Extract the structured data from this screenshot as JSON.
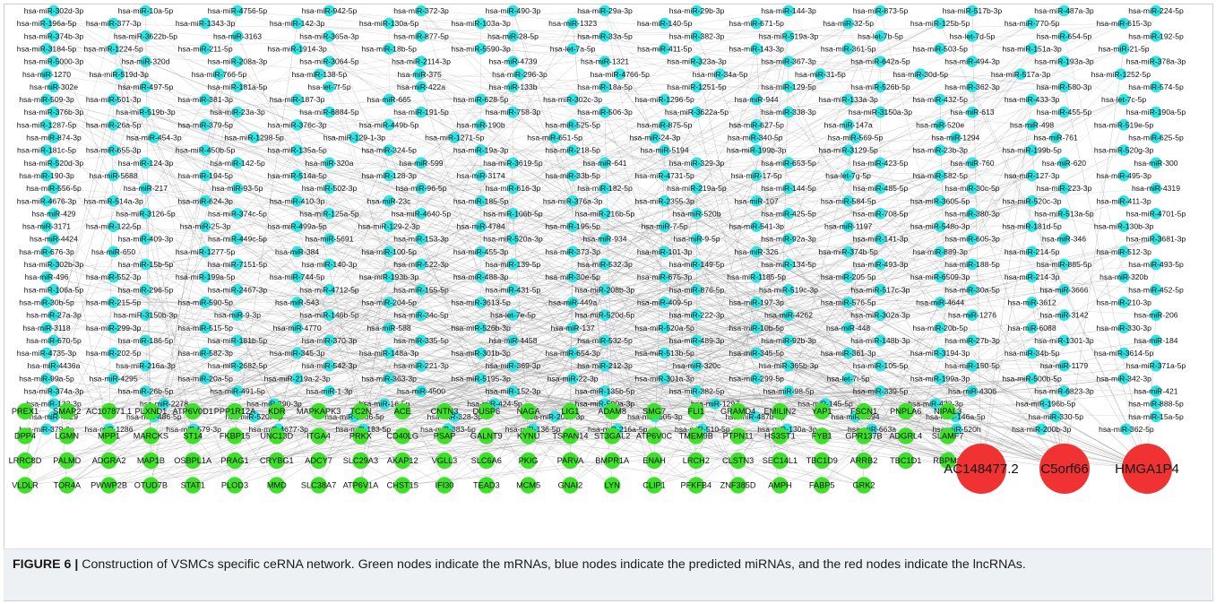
{
  "figure": {
    "label": "FIGURE 6 |",
    "caption": " Construction of VSMCs specific ceRNA network. Green nodes indicate the mRNAs, blue nodes indicate the predicted miRNAs, and the red nodes indicate the lncRNAs."
  },
  "colors": {
    "mirna_node": "#2fe3e3",
    "mrna_node": "#3ee02a",
    "lncrna_node": "#f03232",
    "edge": "#8c8c8c",
    "caption_bg": "#eef1f4"
  },
  "mirna_rows": [
    [
      "hsa-miR-302d-3p",
      "hsa-miR-10a-5p",
      "hsa-miR-4756-5p",
      "hsa-miR-942-5p",
      "hsa-miR-372-3p",
      "hsa-miR-490-3p",
      "hsa-miR-29a-3p",
      "hsa-miR-29b-3p",
      "hsa-miR-144-3p",
      "hsa-miR-873-5p",
      "hsa-miR-517b-3p",
      "hsa-miR-487a-3p",
      "hsa-miR-224-5p"
    ],
    [
      "hsa-miR-196a-5p",
      "hsa-miR-377-3p",
      "hsa-miR-1343-3p",
      "hsa-miR-142-3p",
      "hsa-miR-130a-5p",
      "hsa-miR-103a-3p",
      "hsa-miR-1323",
      "hsa-miR-140-5p",
      "hsa-miR-671-5p",
      "hsa-miR-32-5p",
      "hsa-miR-125b-5p",
      "hsa-miR-770-5p",
      "hsa-miR-615-3p"
    ],
    [
      "hsa-miR-374b-3p",
      "hsa-miR-3622b-5p",
      "hsa-miR-3163",
      "hsa-miR-365a-3p",
      "hsa-miR-877-5p",
      "hsa-miR-28-5p",
      "hsa-miR-33a-5p",
      "hsa-miR-382-3p",
      "hsa-miR-519a-3p",
      "hsa-let-7b-5p",
      "hsa-let-7d-5p",
      "hsa-miR-654-5p",
      "hsa-miR-192-5p"
    ],
    [
      "hsa-miR-3184-5p",
      "hsa-miR-1224-5p",
      "hsa-miR-211-5p",
      "hsa-miR-1914-3p",
      "hsa-miR-18b-5p",
      "hsa-miR-5590-3p",
      "hsa-let-7a-5p",
      "hsa-miR-411-5p",
      "hsa-miR-143-3p",
      "hsa-miR-361-5p",
      "hsa-miR-503-5p",
      "hsa-miR-151a-3p",
      "hsa-miR-21-5p"
    ],
    [
      "hsa-miR-5000-3p",
      "hsa-miR-320d",
      "hsa-miR-208a-3p",
      "hsa-miR-3064-5p",
      "hsa-miR-2114-3p",
      "hsa-miR-4739",
      "hsa-miR-1321",
      "hsa-miR-323a-3p",
      "hsa-miR-367-3p",
      "hsa-miR-642a-5p",
      "hsa-miR-494-3p",
      "hsa-miR-193a-3p",
      "hsa-miR-378a-3p"
    ],
    [
      "hsa-miR-1270",
      "hsa-miR-519d-3p",
      "hsa-miR-766-5p",
      "hsa-miR-138-5p",
      "hsa-miR-375",
      "hsa-miR-296-3p",
      "hsa-miR-4766-5p",
      "hsa-miR-34a-5p",
      "hsa-miR-31-5p",
      "hsa-miR-30d-5p",
      "hsa-miR-517a-3p",
      "hsa-miR-1252-5p"
    ],
    [
      "hsa-miR-302e",
      "hsa-miR-497-5p",
      "hsa-miR-181a-5p",
      "hsa-let-7f-5p",
      "hsa-miR-422a",
      "hsa-miR-133b",
      "hsa-miR-18a-5p",
      "hsa-miR-1251-5p",
      "hsa-miR-129-5p",
      "hsa-miR-526b-5p",
      "hsa-miR-362-3p",
      "hsa-miR-580-3p",
      "hsa-miR-574-5p"
    ],
    [
      "hsa-miR-509-3p",
      "hsa-miR-501-3p",
      "hsa-miR-381-3p",
      "hsa-miR-187-3p",
      "hsa-miR-665",
      "hsa-miR-628-5p",
      "hsa-miR-302c-3p",
      "hsa-miR-1296-5p",
      "hsa-miR-944",
      "hsa-miR-133a-3p",
      "hsa-miR-432-5p",
      "hsa-miR-433-3p",
      "hsa-let-7c-5p"
    ],
    [
      "hsa-miR-376b-3p",
      "hsa-miR-519b-3p",
      "hsa-miR-23a-3p",
      "hsa-miR-6884-5p",
      "hsa-miR-191-5p",
      "hsa-miR-758-3p",
      "hsa-miR-506-3p",
      "hsa-miR-3622a-5p",
      "hsa-miR-338-3p",
      "hsa-miR-3150a-3p",
      "hsa-miR-613",
      "hsa-miR-455-5p",
      "hsa-miR-190a-5p"
    ],
    [
      "hsa-miR-1287-5p",
      "hsa-miR-26a-5p",
      "hsa-miR-379-5p",
      "hsa-miR-376c-3p",
      "hsa-miR-449b-5p",
      "hsa-miR-190b",
      "hsa-miR-525-5p",
      "hsa-miR-875-5p",
      "hsa-miR-627-5p",
      "hsa-miR-147a",
      "hsa-miR-520e",
      "hsa-miR-498",
      "hsa-miR-519e-5p"
    ],
    [
      "hsa-miR-874-3p",
      "hsa-miR-454-3p",
      "hsa-miR-1298-5p",
      "hsa-miR-129-1-3p",
      "hsa-miR-1271-5p",
      "hsa-miR-651-5p",
      "hsa-miR-24-3p",
      "hsa-miR-340-5p",
      "hsa-miR-569-5p",
      "hsa-miR-1294",
      "hsa-miR-761",
      "hsa-miR-625-5p"
    ],
    [
      "hsa-miR-181c-5p",
      "hsa-miR-655-3p",
      "hsa-miR-450b-5p",
      "hsa-miR-135a-5p",
      "hsa-miR-324-5p",
      "hsa-miR-19a-3p",
      "hsa-miR-218-5p",
      "hsa-miR-5194",
      "hsa-miR-199b-3p",
      "hsa-miR-3129-5p",
      "hsa-miR-23b-3p",
      "hsa-miR-199b-5p",
      "hsa-miR-520g-3p"
    ],
    [
      "hsa-miR-520d-3p",
      "hsa-miR-124-3p",
      "hsa-miR-142-5p",
      "hsa-miR-320a",
      "hsa-miR-599",
      "hsa-miR-3619-5p",
      "hsa-miR-641",
      "hsa-miR-329-3p",
      "hsa-miR-653-5p",
      "hsa-miR-423-5p",
      "hsa-miR-760",
      "hsa-miR-620",
      "hsa-miR-300"
    ],
    [
      "hsa-miR-190-3p",
      "hsa-miR-5688",
      "hsa-miR-194-5p",
      "hsa-miR-514a-5p",
      "hsa-miR-128-3p",
      "hsa-miR-3174",
      "hsa-miR-33b-5p",
      "hsa-miR-4731-5p",
      "hsa-miR-17-5p",
      "hsa-let-7g-5p",
      "hsa-miR-582-5p",
      "hsa-miR-127-3p",
      "hsa-miR-495-3p"
    ],
    [
      "hsa-miR-556-5p",
      "hsa-miR-217",
      "hsa-miR-93-5p",
      "hsa-miR-502-3p",
      "hsa-miR-96-5p",
      "hsa-miR-616-3p",
      "hsa-miR-182-5p",
      "hsa-miR-219a-5p",
      "hsa-miR-144-5p",
      "hsa-miR-485-5p",
      "hsa-miR-30c-5p",
      "hsa-miR-223-3p",
      "hsa-miR-4319"
    ],
    [
      "hsa-miR-4676-3p",
      "hsa-miR-514a-3p",
      "hsa-miR-624-3p",
      "hsa-miR-410-3p",
      "hsa-miR-23c",
      "hsa-miR-185-5p",
      "hsa-miR-376a-3p",
      "hsa-miR-2355-3p",
      "hsa-miR-107",
      "hsa-miR-584-5p",
      "hsa-miR-3605-5p",
      "hsa-miR-520c-3p",
      "hsa-miR-411-3p"
    ],
    [
      "hsa-miR-429",
      "hsa-miR-3126-5p",
      "hsa-miR-374c-5p",
      "hsa-miR-125a-5p",
      "hsa-miR-4640-5p",
      "hsa-miR-106b-5p",
      "hsa-miR-216b-5p",
      "hsa-miR-520b",
      "hsa-miR-425-5p",
      "hsa-miR-708-5p",
      "hsa-miR-380-3p",
      "hsa-miR-513a-5p",
      "hsa-miR-4701-5p"
    ],
    [
      "hsa-miR-3171",
      "hsa-miR-122-5p",
      "hsa-miR-25-3p",
      "hsa-miR-499a-5p",
      "hsa-miR-129-2-3p",
      "hsa-miR-4784",
      "hsa-miR-195-5p",
      "hsa-miR-7-5p",
      "hsa-miR-541-3p",
      "hsa-miR-1197",
      "hsa-miR-548o-3p",
      "hsa-miR-181d-5p",
      "hsa-miR-130b-3p"
    ],
    [
      "hsa-miR-4424",
      "hsa-miR-409-3p",
      "hsa-miR-449c-5p",
      "hsa-miR-5691",
      "hsa-miR-153-3p",
      "hsa-miR-520a-3p",
      "hsa-miR-934",
      "hsa-miR-9-5p",
      "hsa-miR-92a-3p",
      "hsa-miR-141-3p",
      "hsa-miR-605-3p",
      "hsa-miR-346",
      "hsa-miR-3681-3p"
    ],
    [
      "hsa-miR-676-3p",
      "hsa-miR-650",
      "hsa-miR-1277-5p",
      "hsa-miR-384",
      "hsa-miR-100-5p",
      "hsa-miR-455-3p",
      "hsa-miR-373-3p",
      "hsa-miR-101-3p",
      "hsa-miR-326",
      "hsa-miR-374b-5p",
      "hsa-miR-889-3p",
      "hsa-miR-214-5p",
      "hsa-miR-512-3p"
    ],
    [
      "hsa-miR-302b-3p",
      "hsa-miR-15b-5p",
      "hsa-miR-7151-5p",
      "hsa-miR-140-3p",
      "hsa-miR-522-3p",
      "hsa-miR-139-5p",
      "hsa-miR-532-3p",
      "hsa-miR-149-5p",
      "hsa-miR-134-5p",
      "hsa-miR-493-3p",
      "hsa-miR-188-5p",
      "hsa-miR-885-5p",
      "hsa-miR-493-5p"
    ],
    [
      "hsa-miR-496",
      "hsa-miR-552-3p",
      "hsa-miR-199a-5p",
      "hsa-miR-744-5p",
      "hsa-miR-193b-3p",
      "hsa-miR-488-3p",
      "hsa-miR-30e-5p",
      "hsa-miR-675-3p",
      "hsa-miR-1185-5p",
      "hsa-miR-205-5p",
      "hsa-miR-6509-3p",
      "hsa-miR-214-3p",
      "hsa-miR-320b"
    ],
    [
      "hsa-miR-106a-5p",
      "hsa-miR-296-5p",
      "hsa-miR-2467-3p",
      "hsa-miR-4712-5p",
      "hsa-miR-155-5p",
      "hsa-miR-431-5p",
      "hsa-miR-208b-3p",
      "hsa-miR-876-5p",
      "hsa-miR-519c-3p",
      "hsa-miR-517c-3p",
      "hsa-miR-30a-5p",
      "hsa-miR-3666",
      "hsa-miR-452-5p"
    ],
    [
      "hsa-miR-30b-5p",
      "hsa-miR-215-5p",
      "hsa-miR-590-5p",
      "hsa-miR-543",
      "hsa-miR-204-5p",
      "hsa-miR-3613-5p",
      "hsa-miR-449a",
      "hsa-miR-409-5p",
      "hsa-miR-197-3p",
      "hsa-miR-576-5p",
      "hsa-miR-4644",
      "hsa-miR-3612",
      "hsa-miR-210-3p"
    ],
    [
      "hsa-miR-27a-3p",
      "hsa-miR-3150b-3p",
      "hsa-miR-9-3p",
      "hsa-miR-146b-5p",
      "hsa-miR-34c-5p",
      "hsa-let-7e-5p",
      "hsa-miR-520d-5p",
      "hsa-miR-222-3p",
      "hsa-miR-4262",
      "hsa-miR-302a-3p",
      "hsa-miR-1276",
      "hsa-miR-3142",
      "hsa-miR-206"
    ],
    [
      "hsa-miR-3118",
      "hsa-miR-299-3p",
      "hsa-miR-515-5p",
      "hsa-miR-4770",
      "hsa-miR-588",
      "hsa-miR-526b-3p",
      "hsa-miR-137",
      "hsa-miR-520a-5p",
      "hsa-miR-10b-5p",
      "hsa-miR-448",
      "hsa-miR-20b-5p",
      "hsa-miR-6088",
      "hsa-miR-330-3p"
    ],
    [
      "hsa-miR-670-5p",
      "hsa-miR-186-5p",
      "hsa-miR-181b-5p",
      "hsa-miR-370-3p",
      "hsa-miR-335-5p",
      "hsa-miR-4458",
      "hsa-miR-532-5p",
      "hsa-miR-489-3p",
      "hsa-miR-92b-3p",
      "hsa-miR-148b-3p",
      "hsa-miR-27b-3p",
      "hsa-miR-1301-3p",
      "hsa-miR-184"
    ],
    [
      "hsa-miR-4735-3p",
      "hsa-miR-202-5p",
      "hsa-miR-582-3p",
      "hsa-miR-345-3p",
      "hsa-miR-148a-3p",
      "hsa-miR-301b-3p",
      "hsa-miR-654-3p",
      "hsa-miR-513b-5p",
      "hsa-miR-345-5p",
      "hsa-miR-361-3p",
      "hsa-miR-3194-3p",
      "hsa-miR-34b-5p",
      "hsa-miR-3614-5p"
    ],
    [
      "hsa-miR-4436a",
      "hsa-miR-216a-3p",
      "hsa-miR-2682-5p",
      "hsa-miR-542-3p",
      "hsa-miR-221-3p",
      "hsa-miR-369-3p",
      "hsa-miR-212-3p",
      "hsa-miR-320c",
      "hsa-miR-365b-3p",
      "hsa-miR-105-5p",
      "hsa-miR-150-5p",
      "hsa-miR-1179",
      "hsa-miR-371a-5p"
    ],
    [
      "hsa-miR-99a-5p",
      "hsa-miR-4295",
      "hsa-miR-20a-5p",
      "hsa-miR-219a-2-3p",
      "hsa-miR-363-3p",
      "hsa-miR-5195-3p",
      "hsa-miR-22-3p",
      "hsa-miR-301a-3p",
      "hsa-miR-299-5p",
      "hsa-let-7i-5p",
      "hsa-miR-199a-3p",
      "hsa-miR-500b-5p",
      "hsa-miR-342-3p"
    ],
    [
      "hsa-miR-374a-3p",
      "hsa-miR-26b-5p",
      "hsa-miR-491-5p",
      "hsa-miR-1-3p",
      "hsa-miR-4500",
      "hsa-miR-152-3p",
      "hsa-miR-135b-5p",
      "hsa-miR-382-5p",
      "hsa-miR-98-5p",
      "hsa-miR-339-5p",
      "hsa-miR-4306",
      "hsa-miR-6823-3p",
      "hsa-miR-421"
    ],
    [
      "hsa-miR-132-3p",
      "hsa-miR-2278",
      "hsa-miR-290-3p",
      "hsa-miR-16-5p",
      "hsa-miR-424-5p",
      "hsa-miR-500a-3p",
      "hsa-miR-1297",
      "hsa-miR-145-5p",
      "hsa-miR-423-3p",
      "hsa-miR-196b-5p",
      "hsa-miR-888-5p"
    ],
    [
      "hsa-miR-4429",
      "hsa-miR-486-5p",
      "hsa-miR-520f-3p",
      "hsa-miR-1306-5p",
      "hsa-miR-328-3p",
      "hsa-miR-200c-3p",
      "hsa-miR-505-3p",
      "hsa-miR-487b-3p",
      "hsa-miR-5094",
      "hsa-miR-146a-5p",
      "hsa-miR-330-5p",
      "hsa-miR-15a-5p"
    ],
    [
      "hsa-miR-379-3p",
      "hsa-miR-1286",
      "hsa-miR-579-3p",
      "hsa-miR-4677-3p",
      "hsa-miR-183-5p",
      "hsa-miR-383-5p",
      "hsa-miR-136-5p",
      "hsa-miR-216a-5p",
      "hsa-miR-510-5p",
      "hsa-miR-130a-3p",
      "hsa-miR-663a",
      "hsa-miR-520h",
      "hsa-miR-200b-3p",
      "hsa-miR-362-5p"
    ]
  ],
  "mrna_rows": [
    [
      "PREX1",
      "SMAP2",
      "AC107871.1",
      "PLXND1",
      "ATP6V0D1",
      "PPP1R12A",
      "KDR",
      "MAPKAPK3",
      "TC2N",
      "ACE",
      "CNTN3",
      "DUSP6",
      "NAGA",
      "LIG1",
      "ADAM8",
      "SMG7",
      "FLI1",
      "GRAMD4",
      "EMILIN2",
      "YAP1",
      "FSCN1",
      "PNPLA6",
      "NIPAL3"
    ],
    [
      "DPP4",
      "LGMN",
      "MPP1",
      "MARCKS",
      "ST14",
      "FKBP15",
      "UNC13D",
      "ITGA4",
      "PRKX",
      "CD40LG",
      "PSAP",
      "GALNT9",
      "KYNU",
      "TSPAN14",
      "ST3GAL2",
      "ATP6V0C",
      "TMEM9B",
      "PTPN11",
      "HS3ST1",
      "FYB1",
      "GPR137B",
      "ADGRL4",
      "SLAMF7"
    ],
    [
      "LRRC8D",
      "PALMD",
      "ADGRA2",
      "MAP1B",
      "OSBPL1A",
      "PRAG1",
      "CRYBG1",
      "ADCY7",
      "SLC29A3",
      "AKAP12",
      "VGLL3",
      "SLC6A6",
      "PKIG",
      "PARVA",
      "BMPR1A",
      "ENAH",
      "LRCH2",
      "CLSTN3",
      "SEC14L1",
      "TBC1D9",
      "ARRB2",
      "TBC1D1",
      "RBPMS"
    ],
    [
      "VLDLR",
      "TOR4A",
      "PWWP2B",
      "OTUD7B",
      "STAT1",
      "PLOD3",
      "MMD",
      "SLC38A7",
      "ATP6V1A",
      "CHST15",
      "IFI30",
      "TEAD3",
      "MCM5",
      "GNAI2",
      "LYN",
      "CLIP1",
      "PFKFB4",
      "ZNF385D",
      "AMPH",
      "FABP5",
      "GRK2"
    ]
  ],
  "lncrnas": [
    "AC148477.2",
    "C5orf66",
    "HMGA1P4"
  ]
}
